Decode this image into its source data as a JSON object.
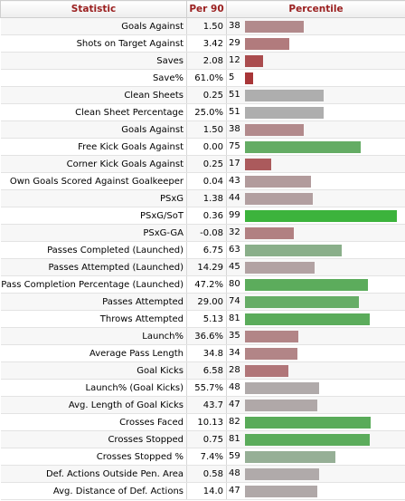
{
  "header": {
    "statistic": "Statistic",
    "per90": "Per 90",
    "percentile": "Percentile"
  },
  "rows": [
    {
      "stat": "Goals Against",
      "per90": "1.50",
      "pct": 38,
      "color": "#b28a8c"
    },
    {
      "stat": "Shots on Target Against",
      "per90": "3.42",
      "pct": 29,
      "color": "#b17b7d"
    },
    {
      "stat": "Saves",
      "per90": "2.08",
      "pct": 12,
      "color": "#aa4c4e"
    },
    {
      "stat": "Save%",
      "per90": "61.0%",
      "pct": 5,
      "color": "#a83638"
    },
    {
      "stat": "Clean Sheets",
      "per90": "0.25",
      "pct": 51,
      "color": "#aeaeae"
    },
    {
      "stat": "Clean Sheet Percentage",
      "per90": "25.0%",
      "pct": 51,
      "color": "#aeaeae"
    },
    {
      "stat": "Goals Against",
      "per90": "1.50",
      "pct": 38,
      "color": "#b28a8c"
    },
    {
      "stat": "Free Kick Goals Against",
      "per90": "0.00",
      "pct": 75,
      "color": "#64ac64"
    },
    {
      "stat": "Corner Kick Goals Against",
      "per90": "0.25",
      "pct": 17,
      "color": "#ab5a5c"
    },
    {
      "stat": "Own Goals Scored Against Goalkeeper",
      "per90": "0.04",
      "pct": 43,
      "color": "#b29b9c"
    },
    {
      "stat": "PSxG",
      "per90": "1.38",
      "pct": 44,
      "color": "#b29fa0"
    },
    {
      "stat": "PSxG/SoT",
      "per90": "0.36",
      "pct": 99,
      "color": "#3cb33c"
    },
    {
      "stat": "PSxG-GA",
      "per90": "-0.08",
      "pct": 32,
      "color": "#b18082"
    },
    {
      "stat": "Passes Completed (Launched)",
      "per90": "6.75",
      "pct": 63,
      "color": "#8aaf8a"
    },
    {
      "stat": "Passes Attempted (Launched)",
      "per90": "14.29",
      "pct": 45,
      "color": "#b2a2a3"
    },
    {
      "stat": "Pass Completion Percentage (Launched)",
      "per90": "47.2%",
      "pct": 80,
      "color": "#5cac5c"
    },
    {
      "stat": "Passes Attempted",
      "per90": "29.00",
      "pct": 74,
      "color": "#66ad66"
    },
    {
      "stat": "Throws Attempted",
      "per90": "5.13",
      "pct": 81,
      "color": "#5bac5b"
    },
    {
      "stat": "Launch%",
      "per90": "36.6%",
      "pct": 35,
      "color": "#b28587"
    },
    {
      "stat": "Average Pass Length",
      "per90": "34.8",
      "pct": 34,
      "color": "#b28587"
    },
    {
      "stat": "Goal Kicks",
      "per90": "6.58",
      "pct": 28,
      "color": "#b17679"
    },
    {
      "stat": "Launch% (Goal Kicks)",
      "per90": "55.7%",
      "pct": 48,
      "color": "#b0aaaa"
    },
    {
      "stat": "Avg. Length of Goal Kicks",
      "per90": "43.7",
      "pct": 47,
      "color": "#b0a8a8"
    },
    {
      "stat": "Crosses Faced",
      "per90": "10.13",
      "pct": 82,
      "color": "#59ab59"
    },
    {
      "stat": "Crosses Stopped",
      "per90": "0.75",
      "pct": 81,
      "color": "#5bac5b"
    },
    {
      "stat": "Crosses Stopped %",
      "per90": "7.4%",
      "pct": 59,
      "color": "#96af96"
    },
    {
      "stat": "Def. Actions Outside Pen. Area",
      "per90": "0.58",
      "pct": 48,
      "color": "#b0aaaa"
    },
    {
      "stat": "Avg. Distance of Def. Actions",
      "per90": "14.0",
      "pct": 47,
      "color": "#b0a8a8"
    }
  ]
}
